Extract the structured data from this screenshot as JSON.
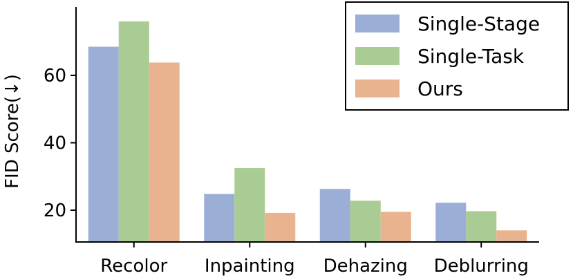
{
  "chart_data": {
    "type": "bar",
    "categories": [
      "Recolor",
      "Inpainting",
      "Dehazing",
      "Deblurring"
    ],
    "series": [
      {
        "name": "Single-Stage",
        "color": "#9aaed6",
        "values": [
          68.5,
          24.8,
          26.3,
          22.2
        ]
      },
      {
        "name": "Single-Task",
        "color": "#a9cb94",
        "values": [
          76.0,
          32.5,
          22.8,
          19.7
        ]
      },
      {
        "name": "Ours",
        "color": "#e9b38f",
        "values": [
          63.8,
          19.2,
          19.5,
          14.0
        ]
      }
    ],
    "ylabel": "FID Score(↓)",
    "yticks": [
      20,
      40,
      60
    ],
    "ylim": [
      10,
      78
    ],
    "grid": false,
    "legend_position": "top-right"
  }
}
